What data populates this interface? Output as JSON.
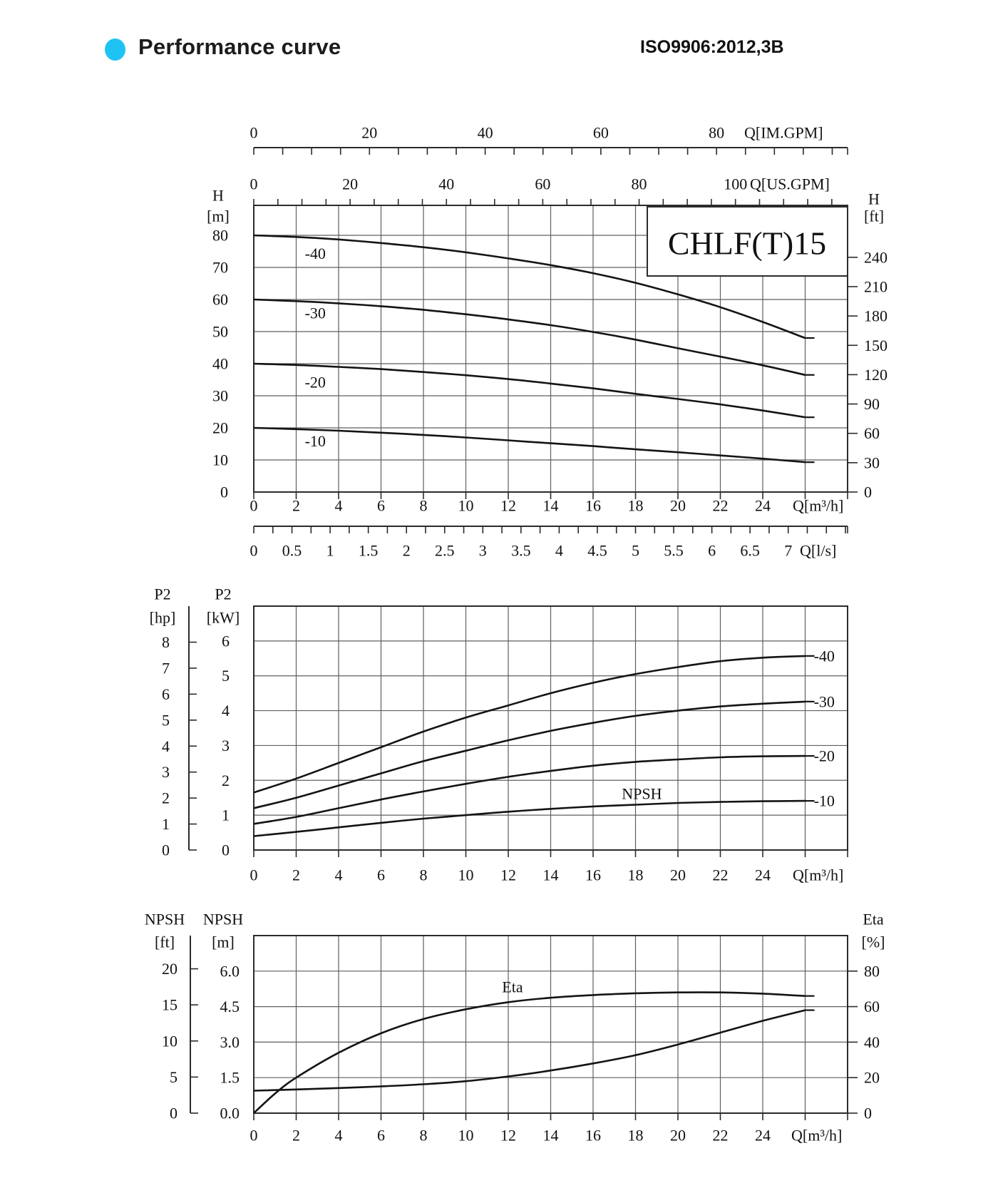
{
  "header": {
    "title": "Performance curve",
    "standard": "ISO9906:2012,3B",
    "accent_color": "#1fc3f3"
  },
  "model": "CHLF(T)15",
  "colors": {
    "curve": "#141414",
    "grid": "#5f5f5f",
    "frame": "#2b2b2b",
    "text": "#111111",
    "box_fill": "#ffffff"
  },
  "chart_data": [
    {
      "type": "line",
      "name": "head-capacity",
      "title": "CHLF(T)15",
      "x": {
        "unit": "Q[m³/h]",
        "min": 0,
        "max": 28,
        "tick_step": 2,
        "tick_labels": [
          0,
          2,
          4,
          6,
          8,
          10,
          12,
          14,
          16,
          18,
          20,
          22,
          24
        ]
      },
      "x_top": [
        {
          "unit": "Q[IM.GPM]",
          "tick_labels": [
            0,
            20,
            40,
            60,
            80
          ],
          "minor_step": 5,
          "units_per_m3h": 3.6662
        },
        {
          "unit": "Q[US.GPM]",
          "tick_labels": [
            0,
            20,
            40,
            60,
            80,
            100
          ],
          "minor_step": 5,
          "units_per_m3h": 4.4029
        }
      ],
      "x_sub": {
        "unit": "Q[l/s]",
        "minor_step": 0.25,
        "m3h_per_unit": 3.6,
        "tick_labels": [
          "0",
          "0.5",
          "1",
          "1.5",
          "2",
          "2.5",
          "3",
          "3.5",
          "4",
          "4.5",
          "5",
          "5.5",
          "6",
          "6.5",
          "7"
        ]
      },
      "y": {
        "unit": [
          "H",
          "[m]"
        ],
        "min": 0,
        "max": 89,
        "tick_labels": [
          0,
          10,
          20,
          30,
          40,
          50,
          60,
          70,
          80
        ],
        "grid": true
      },
      "y_right": {
        "unit": [
          "H",
          "[ft]"
        ],
        "tick_labels": [
          0,
          30,
          60,
          90,
          120,
          150,
          180,
          210,
          240
        ],
        "ft_per_m": 3.2808
      },
      "series": [
        {
          "name": "-40",
          "label": "-40",
          "label_at": [
            2.9,
            74.3
          ],
          "points": [
            [
              0,
              80
            ],
            [
              2,
              79.5
            ],
            [
              4,
              78.7
            ],
            [
              6,
              77.6
            ],
            [
              8,
              76.3
            ],
            [
              10,
              74.7
            ],
            [
              12,
              72.8
            ],
            [
              14,
              70.7
            ],
            [
              16,
              68.2
            ],
            [
              18,
              65.2
            ],
            [
              20,
              61.6
            ],
            [
              22,
              57.6
            ],
            [
              24,
              53.0
            ],
            [
              26,
              48.0
            ]
          ]
        },
        {
          "name": "-30",
          "label": "-30",
          "label_at": [
            2.9,
            55.8
          ],
          "points": [
            [
              0,
              60
            ],
            [
              2,
              59.5
            ],
            [
              4,
              58.8
            ],
            [
              6,
              57.9
            ],
            [
              8,
              56.8
            ],
            [
              10,
              55.4
            ],
            [
              12,
              53.8
            ],
            [
              14,
              52.0
            ],
            [
              16,
              49.9
            ],
            [
              18,
              47.5
            ],
            [
              20,
              44.8
            ],
            [
              22,
              42.2
            ],
            [
              24,
              39.5
            ],
            [
              26,
              36.5
            ]
          ]
        },
        {
          "name": "-20",
          "label": "-20",
          "label_at": [
            2.9,
            34.2
          ],
          "points": [
            [
              0,
              40
            ],
            [
              2,
              39.6
            ],
            [
              4,
              39.0
            ],
            [
              6,
              38.3
            ],
            [
              8,
              37.4
            ],
            [
              10,
              36.4
            ],
            [
              12,
              35.2
            ],
            [
              14,
              33.8
            ],
            [
              16,
              32.3
            ],
            [
              18,
              30.6
            ],
            [
              20,
              29.0
            ],
            [
              22,
              27.3
            ],
            [
              24,
              25.4
            ],
            [
              26,
              23.3
            ]
          ]
        },
        {
          "name": "-10",
          "label": "-10",
          "label_at": [
            2.9,
            15.9
          ],
          "points": [
            [
              0,
              20
            ],
            [
              2,
              19.6
            ],
            [
              4,
              19.1
            ],
            [
              6,
              18.5
            ],
            [
              8,
              17.8
            ],
            [
              10,
              17.0
            ],
            [
              12,
              16.1
            ],
            [
              14,
              15.2
            ],
            [
              16,
              14.3
            ],
            [
              18,
              13.3
            ],
            [
              20,
              12.4
            ],
            [
              22,
              11.4
            ],
            [
              24,
              10.4
            ],
            [
              26,
              9.3
            ]
          ]
        }
      ]
    },
    {
      "type": "line",
      "name": "power",
      "x": {
        "unit": "Q[m³/h]",
        "min": 0,
        "max": 28,
        "tick_step": 2,
        "tick_labels": [
          0,
          2,
          4,
          6,
          8,
          10,
          12,
          14,
          16,
          18,
          20,
          22,
          24
        ]
      },
      "y": {
        "unit": [
          "P2",
          "[kW]"
        ],
        "min": 0,
        "max": 7,
        "tick_labels": [
          0,
          1,
          2,
          3,
          4,
          5,
          6
        ],
        "grid": true
      },
      "y_left2": {
        "unit": [
          "P2",
          "[hp]"
        ],
        "tick_labels": [
          0,
          1,
          2,
          3,
          4,
          5,
          6,
          7,
          8
        ],
        "kw_per_hp": 0.7457
      },
      "series": [
        {
          "name": "-40",
          "label": "-40",
          "label_at": [
            26.9,
            5.57
          ],
          "points": [
            [
              0,
              1.65
            ],
            [
              2,
              2.05
            ],
            [
              4,
              2.5
            ],
            [
              6,
              2.95
            ],
            [
              8,
              3.4
            ],
            [
              10,
              3.8
            ],
            [
              12,
              4.15
            ],
            [
              14,
              4.5
            ],
            [
              16,
              4.8
            ],
            [
              18,
              5.05
            ],
            [
              20,
              5.25
            ],
            [
              22,
              5.42
            ],
            [
              24,
              5.52
            ],
            [
              26,
              5.57
            ]
          ]
        },
        {
          "name": "-30",
          "label": "-30",
          "label_at": [
            26.9,
            4.26
          ],
          "points": [
            [
              0,
              1.2
            ],
            [
              2,
              1.5
            ],
            [
              4,
              1.85
            ],
            [
              6,
              2.2
            ],
            [
              8,
              2.55
            ],
            [
              10,
              2.85
            ],
            [
              12,
              3.15
            ],
            [
              14,
              3.42
            ],
            [
              16,
              3.65
            ],
            [
              18,
              3.85
            ],
            [
              20,
              4.0
            ],
            [
              22,
              4.12
            ],
            [
              24,
              4.2
            ],
            [
              26,
              4.26
            ]
          ]
        },
        {
          "name": "-20",
          "label": "-20",
          "label_at": [
            26.9,
            2.7
          ],
          "points": [
            [
              0,
              0.75
            ],
            [
              2,
              0.95
            ],
            [
              4,
              1.2
            ],
            [
              6,
              1.45
            ],
            [
              8,
              1.68
            ],
            [
              10,
              1.9
            ],
            [
              12,
              2.1
            ],
            [
              14,
              2.27
            ],
            [
              16,
              2.42
            ],
            [
              18,
              2.53
            ],
            [
              20,
              2.6
            ],
            [
              22,
              2.66
            ],
            [
              24,
              2.69
            ],
            [
              26,
              2.7
            ]
          ]
        },
        {
          "name": "-10",
          "label": "-10",
          "label_at": [
            26.9,
            1.41
          ],
          "points": [
            [
              0,
              0.4
            ],
            [
              2,
              0.52
            ],
            [
              4,
              0.65
            ],
            [
              6,
              0.78
            ],
            [
              8,
              0.9
            ],
            [
              10,
              1.0
            ],
            [
              12,
              1.1
            ],
            [
              14,
              1.18
            ],
            [
              16,
              1.25
            ],
            [
              18,
              1.3
            ],
            [
              20,
              1.35
            ],
            [
              22,
              1.38
            ],
            [
              24,
              1.4
            ],
            [
              26,
              1.41
            ]
          ]
        }
      ]
    },
    {
      "type": "line",
      "name": "npsh-eta",
      "x": {
        "unit": "Q[m³/h]",
        "min": 0,
        "max": 28,
        "tick_step": 2,
        "tick_labels": [
          0,
          2,
          4,
          6,
          8,
          10,
          12,
          14,
          16,
          18,
          20,
          22,
          24
        ]
      },
      "y": {
        "unit": [
          "NPSH",
          "[m]"
        ],
        "tick_labels": [
          "0.0",
          "1.5",
          "3.0",
          "4.5",
          "6.0"
        ],
        "pct_per_m": 13.3333
      },
      "y_left2": {
        "unit": [
          "NPSH",
          "[ft]"
        ],
        "tick_labels": [
          0,
          5,
          10,
          15,
          20
        ],
        "pct_per_ft": 4.0645
      },
      "y_right": {
        "unit": [
          "Eta",
          "[%]"
        ],
        "min": 0,
        "max": 100,
        "tick_labels": [
          0,
          20,
          40,
          60,
          80
        ]
      },
      "series": [
        {
          "name": "Eta",
          "label": "Eta",
          "scale": "pct",
          "label_at": [
            12.2,
            71
          ],
          "points": [
            [
              0,
              0
            ],
            [
              1,
              11
            ],
            [
              2,
              20
            ],
            [
              4,
              34
            ],
            [
              6,
              45
            ],
            [
              8,
              53
            ],
            [
              10,
              58.5
            ],
            [
              12,
              62.5
            ],
            [
              14,
              65
            ],
            [
              16,
              66.5
            ],
            [
              18,
              67.5
            ],
            [
              20,
              68
            ],
            [
              22,
              68
            ],
            [
              24,
              67.3
            ],
            [
              26,
              66
            ]
          ]
        },
        {
          "name": "NPSH",
          "label": "NPSH",
          "scale": "m",
          "label_at": [
            18.3,
            13.5
          ],
          "points": [
            [
              0,
              0.95
            ],
            [
              2,
              1.0
            ],
            [
              4,
              1.06
            ],
            [
              6,
              1.13
            ],
            [
              8,
              1.22
            ],
            [
              10,
              1.35
            ],
            [
              12,
              1.55
            ],
            [
              14,
              1.8
            ],
            [
              16,
              2.1
            ],
            [
              18,
              2.45
            ],
            [
              20,
              2.9
            ],
            [
              22,
              3.4
            ],
            [
              24,
              3.9
            ],
            [
              26,
              4.35
            ]
          ]
        }
      ]
    }
  ]
}
